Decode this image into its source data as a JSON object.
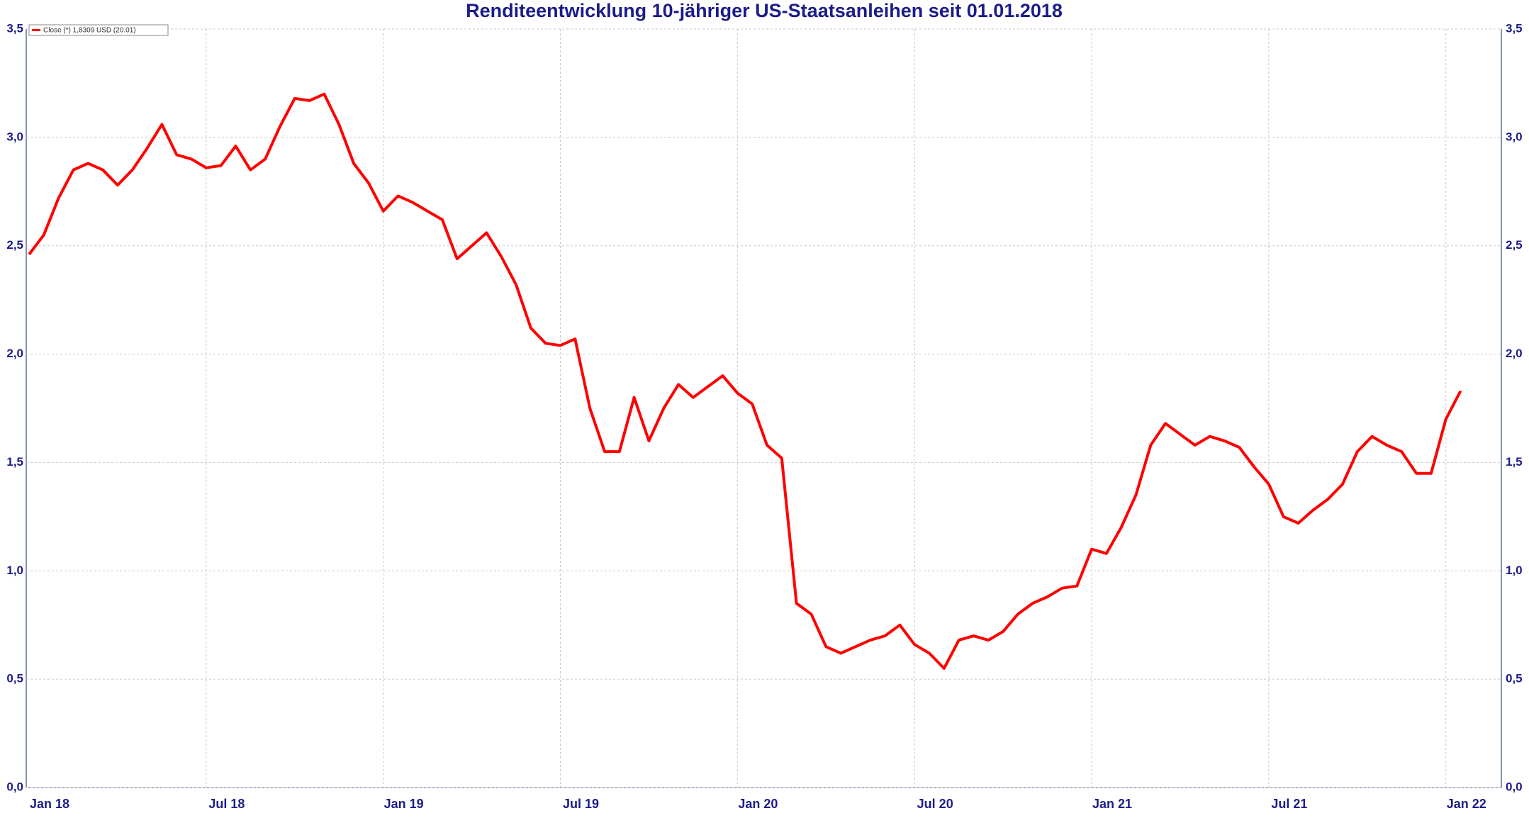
{
  "chart_data": {
    "type": "line",
    "title": "Renditeentwicklung 10-jähriger US-Staatsanleihen seit 01.01.2018",
    "categories": [
      "Jan 18",
      null,
      null,
      null,
      null,
      null,
      null,
      null,
      null,
      null,
      null,
      null,
      "Jul 18",
      null,
      null,
      null,
      null,
      null,
      null,
      null,
      null,
      null,
      null,
      null,
      "Jan 19",
      null,
      null,
      null,
      null,
      null,
      null,
      null,
      null,
      null,
      null,
      null,
      "Jul 19",
      null,
      null,
      null,
      null,
      null,
      null,
      null,
      null,
      null,
      null,
      null,
      "Jan 20",
      null,
      null,
      null,
      null,
      null,
      null,
      null,
      null,
      null,
      null,
      null,
      "Jul 20",
      null,
      null,
      null,
      null,
      null,
      null,
      null,
      null,
      null,
      null,
      null,
      "Jan 21",
      null,
      null,
      null,
      null,
      null,
      null,
      null,
      null,
      null,
      null,
      null,
      "Jul 21",
      null,
      null,
      null,
      null,
      null,
      null,
      null,
      null,
      null,
      null,
      null,
      "Jan 22",
      null
    ],
    "series": [
      {
        "name": "Close (*) 1,8309 USD (20.01)",
        "color": "#ff0000",
        "values": [
          2.46,
          2.55,
          2.72,
          2.85,
          2.88,
          2.85,
          2.78,
          2.85,
          2.95,
          3.06,
          2.92,
          2.9,
          2.86,
          2.87,
          2.96,
          2.85,
          2.9,
          3.05,
          3.18,
          3.17,
          3.2,
          3.06,
          2.88,
          2.79,
          2.66,
          2.73,
          2.7,
          2.66,
          2.62,
          2.44,
          2.5,
          2.56,
          2.45,
          2.32,
          2.12,
          2.05,
          2.04,
          2.07,
          1.75,
          1.55,
          1.55,
          1.8,
          1.6,
          1.75,
          1.86,
          1.8,
          1.85,
          1.9,
          1.82,
          1.77,
          1.58,
          1.52,
          0.85,
          0.8,
          0.65,
          0.62,
          0.65,
          0.68,
          0.7,
          0.75,
          0.66,
          0.62,
          0.55,
          0.68,
          0.7,
          0.68,
          0.72,
          0.8,
          0.85,
          0.88,
          0.92,
          0.93,
          1.1,
          1.08,
          1.2,
          1.35,
          1.58,
          1.68,
          1.63,
          1.58,
          1.62,
          1.6,
          1.57,
          1.48,
          1.4,
          1.25,
          1.22,
          1.28,
          1.33,
          1.4,
          1.55,
          1.62,
          1.58,
          1.55,
          1.45,
          1.45,
          1.7,
          1.83
        ]
      }
    ],
    "ylim": [
      0,
      3.5
    ],
    "yticks": [
      {
        "value": 0,
        "label": "0,0"
      },
      {
        "value": 0.5,
        "label": "0,5"
      },
      {
        "value": 1,
        "label": "1,0"
      },
      {
        "value": 1.5,
        "label": "1,5"
      },
      {
        "value": 2,
        "label": "2,0"
      },
      {
        "value": 2.5,
        "label": "2,5"
      },
      {
        "value": 3,
        "label": "3,0"
      },
      {
        "value": 3.5,
        "label": "3,5"
      }
    ],
    "grid": true
  }
}
